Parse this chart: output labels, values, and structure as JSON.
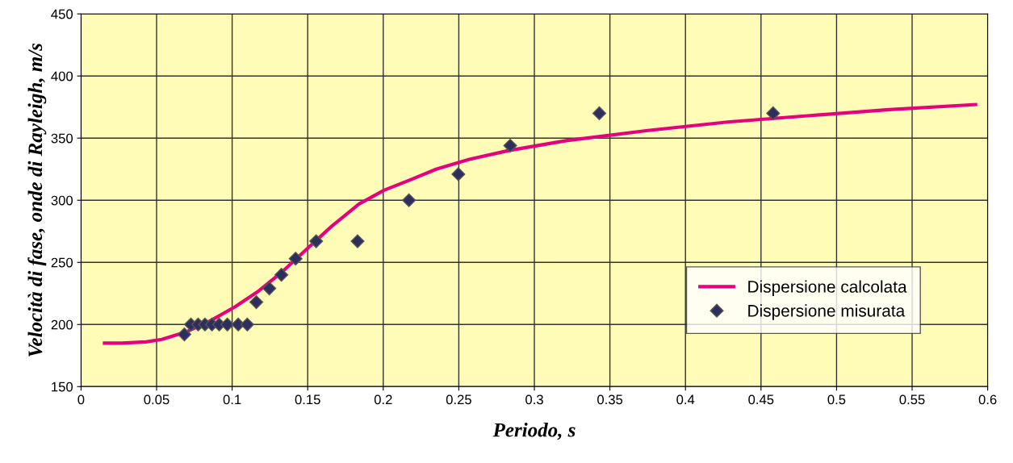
{
  "chart_data": {
    "type": "scatter",
    "xlabel": "Periodo, s",
    "ylabel": "Velocità di fase, onde di Rayleigh, m/s",
    "xlim": [
      0,
      0.6
    ],
    "xticks": [
      0,
      0.05,
      0.1,
      0.15,
      0.2,
      0.25,
      0.3,
      0.35,
      0.4,
      0.45,
      0.5,
      0.55,
      0.6
    ],
    "ylim": [
      150,
      450
    ],
    "yticks": [
      150,
      200,
      250,
      300,
      350,
      400,
      450
    ],
    "grid": true,
    "legend": "bottom right",
    "series": [
      {
        "name": "Dispersione calcolata",
        "type": "line",
        "color": "#e6007e",
        "marker": "none",
        "line_style": "solid",
        "x": [
          0.0155,
          0.027,
          0.043,
          0.0535,
          0.0695,
          0.0856,
          0.1016,
          0.1176,
          0.1337,
          0.1497,
          0.1658,
          0.184,
          0.2005,
          0.219,
          0.235,
          0.257,
          0.283,
          0.321,
          0.374,
          0.428,
          0.481,
          0.535,
          0.592
        ],
        "values": [
          185,
          185,
          186,
          188,
          194,
          203,
          214,
          227,
          243,
          261,
          279,
          297,
          308,
          317,
          325,
          333,
          340,
          348,
          356,
          363,
          368,
          373,
          377
        ]
      },
      {
        "name": "Dispersione misurata",
        "color": "#2e2e5e",
        "marker": "diamond",
        "x": [
          0.0684,
          0.0727,
          0.0775,
          0.082,
          0.0866,
          0.0914,
          0.0968,
          0.104,
          0.11,
          0.116,
          0.1246,
          0.1326,
          0.142,
          0.1556,
          0.183,
          0.217,
          0.2497,
          0.284,
          0.343,
          0.458
        ],
        "values": [
          192,
          200,
          200,
          200,
          200,
          200,
          200,
          200,
          200,
          218,
          229,
          240,
          253,
          267,
          267,
          300,
          321,
          344,
          370,
          370
        ]
      }
    ]
  }
}
